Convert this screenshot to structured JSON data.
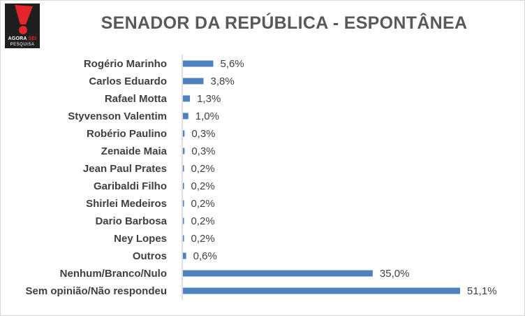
{
  "logo": {
    "line1_prefix": "AGORA",
    "line1_accent": "SEI",
    "line2": "PESQUISA"
  },
  "colors": {
    "bar": "#4f81bd",
    "axis": "#bfbfbf",
    "logo_red": "#e3262a"
  },
  "chart_data": {
    "type": "bar",
    "orientation": "horizontal",
    "title": "SENADOR DA REPÚBLICA - ESPONTÂNEA",
    "grid": false,
    "legend": "none",
    "xlim": [
      0,
      51.1
    ],
    "categories": [
      "Rogério Marinho",
      "Carlos Eduardo",
      "Rafael Motta",
      "Styvenson Valentim",
      "Robério Paulino",
      "Zenaide Maia",
      "Jean Paul Prates",
      "Garibaldi Filho",
      "Shirlei Medeiros",
      "Dario Barbosa",
      "Ney Lopes",
      "Outros",
      "Nenhum/Branco/Nulo",
      "Sem opinião/Não respondeu"
    ],
    "values": [
      5.6,
      3.8,
      1.3,
      1.0,
      0.3,
      0.3,
      0.2,
      0.2,
      0.2,
      0.2,
      0.2,
      0.6,
      35.0,
      51.1
    ],
    "value_labels": [
      "5,6%",
      "3,8%",
      "1,3%",
      "1,0%",
      "0,3%",
      "0,3%",
      "0,2%",
      "0,2%",
      "0,2%",
      "0,2%",
      "0,2%",
      "0,6%",
      "35,0%",
      "51,1%"
    ]
  }
}
